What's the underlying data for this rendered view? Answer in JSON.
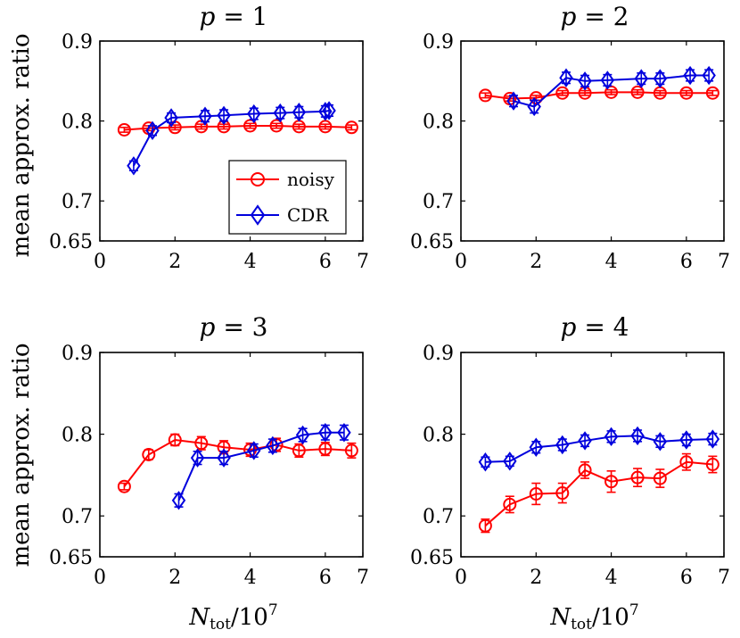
{
  "figure": {
    "ylabel": "mean approx. ratio",
    "xlabel_base": "N",
    "xlabel_sub": "tot",
    "xlabel_rest": "/10",
    "xlabel_exp": "7"
  },
  "legend": {
    "noisy": "noisy",
    "cdr": "CDR"
  },
  "colors": {
    "noisy": "#ff0000",
    "cdr": "#0000dd"
  },
  "chart_data": [
    {
      "type": "line",
      "title_var": "p",
      "title_eq": " = 1",
      "xlim": [
        0,
        7
      ],
      "ylim": [
        0.65,
        0.9
      ],
      "xticks": [
        "0",
        "2",
        "4",
        "6",
        "7"
      ],
      "xtick_values": [
        0,
        2,
        4,
        6,
        7
      ],
      "yticks": [
        "0.9",
        "0.8",
        "0.7",
        "0.65"
      ],
      "ytick_values": [
        0.9,
        0.8,
        0.7,
        0.65
      ],
      "series": [
        {
          "name": "noisy",
          "x": [
            0.65,
            1.3,
            2.0,
            2.7,
            3.3,
            4.0,
            4.7,
            5.3,
            6.0,
            6.7
          ],
          "y": [
            0.789,
            0.791,
            0.792,
            0.793,
            0.793,
            0.794,
            0.794,
            0.793,
            0.793,
            0.792
          ],
          "err": [
            0.003,
            0.003,
            0.003,
            0.003,
            0.003,
            0.003,
            0.003,
            0.003,
            0.003,
            0.003
          ]
        },
        {
          "name": "CDR",
          "x": [
            0.9,
            1.4,
            1.9,
            2.8,
            3.3,
            4.1,
            4.8,
            5.3,
            6.0,
            6.1
          ],
          "y": [
            0.744,
            0.788,
            0.804,
            0.806,
            0.807,
            0.809,
            0.81,
            0.811,
            0.812,
            0.813
          ],
          "err": [
            0.006,
            0.006,
            0.006,
            0.007,
            0.007,
            0.007,
            0.007,
            0.007,
            0.007,
            0.007
          ]
        }
      ],
      "legend_position": "lower-right"
    },
    {
      "type": "line",
      "title_var": "p",
      "title_eq": " = 2",
      "xlim": [
        0,
        7
      ],
      "ylim": [
        0.65,
        0.9
      ],
      "xticks": [
        "0",
        "2",
        "4",
        "6",
        "7"
      ],
      "xtick_values": [
        0,
        2,
        4,
        6,
        7
      ],
      "yticks": [
        "0.9",
        "0.8",
        "0.7",
        "0.65"
      ],
      "ytick_values": [
        0.9,
        0.8,
        0.7,
        0.65
      ],
      "series": [
        {
          "name": "noisy",
          "x": [
            0.65,
            1.3,
            2.0,
            2.7,
            3.3,
            4.0,
            4.7,
            5.3,
            6.0,
            6.7
          ],
          "y": [
            0.832,
            0.828,
            0.829,
            0.835,
            0.835,
            0.836,
            0.836,
            0.835,
            0.835,
            0.835
          ],
          "err": [
            0.003,
            0.003,
            0.003,
            0.003,
            0.003,
            0.003,
            0.003,
            0.003,
            0.003,
            0.003
          ]
        },
        {
          "name": "CDR",
          "x": [
            1.4,
            1.95,
            2.8,
            3.3,
            3.9,
            4.8,
            5.3,
            6.1,
            6.6
          ],
          "y": [
            0.825,
            0.818,
            0.854,
            0.85,
            0.851,
            0.853,
            0.853,
            0.857,
            0.857
          ],
          "err": [
            0.007,
            0.008,
            0.007,
            0.007,
            0.007,
            0.007,
            0.007,
            0.007,
            0.007
          ]
        }
      ]
    },
    {
      "type": "line",
      "title_var": "p",
      "title_eq": " = 3",
      "xlim": [
        0,
        7
      ],
      "ylim": [
        0.65,
        0.9
      ],
      "xticks": [
        "0",
        "2",
        "4",
        "6",
        "7"
      ],
      "xtick_values": [
        0,
        2,
        4,
        6,
        7
      ],
      "yticks": [
        "0.9",
        "0.8",
        "0.7",
        "0.65"
      ],
      "ytick_values": [
        0.9,
        0.8,
        0.7,
        0.65
      ],
      "series": [
        {
          "name": "noisy",
          "x": [
            0.65,
            1.3,
            2.0,
            2.7,
            3.3,
            4.0,
            4.7,
            5.3,
            6.0,
            6.7
          ],
          "y": [
            0.736,
            0.775,
            0.793,
            0.789,
            0.784,
            0.781,
            0.787,
            0.78,
            0.782,
            0.78
          ],
          "err": [
            0.004,
            0.006,
            0.007,
            0.008,
            0.008,
            0.008,
            0.008,
            0.008,
            0.008,
            0.009
          ]
        },
        {
          "name": "CDR",
          "x": [
            2.1,
            2.6,
            3.3,
            4.1,
            4.6,
            5.4,
            6.0,
            6.5
          ],
          "y": [
            0.719,
            0.771,
            0.771,
            0.78,
            0.786,
            0.799,
            0.802,
            0.802
          ],
          "err": [
            0.008,
            0.008,
            0.008,
            0.008,
            0.008,
            0.008,
            0.009,
            0.009
          ]
        }
      ]
    },
    {
      "type": "line",
      "title_var": "p",
      "title_eq": " = 4",
      "xlim": [
        0,
        7
      ],
      "ylim": [
        0.65,
        0.9
      ],
      "xticks": [
        "0",
        "2",
        "4",
        "6",
        "7"
      ],
      "xtick_values": [
        0,
        2,
        4,
        6,
        7
      ],
      "yticks": [
        "0.9",
        "0.8",
        "0.7",
        "0.65"
      ],
      "ytick_values": [
        0.9,
        0.8,
        0.7,
        0.65
      ],
      "series": [
        {
          "name": "noisy",
          "x": [
            0.65,
            1.3,
            2.0,
            2.7,
            3.3,
            4.0,
            4.7,
            5.3,
            6.0,
            6.7
          ],
          "y": [
            0.688,
            0.714,
            0.727,
            0.728,
            0.756,
            0.742,
            0.747,
            0.746,
            0.766,
            0.763
          ],
          "err": [
            0.008,
            0.01,
            0.013,
            0.012,
            0.01,
            0.013,
            0.011,
            0.011,
            0.01,
            0.01
          ]
        },
        {
          "name": "CDR",
          "x": [
            0.65,
            1.3,
            2.0,
            2.7,
            3.3,
            4.0,
            4.7,
            5.3,
            6.0,
            6.7
          ],
          "y": [
            0.766,
            0.767,
            0.784,
            0.787,
            0.792,
            0.797,
            0.798,
            0.791,
            0.793,
            0.794
          ],
          "err": [
            0.006,
            0.006,
            0.007,
            0.007,
            0.007,
            0.007,
            0.007,
            0.007,
            0.007,
            0.007
          ]
        }
      ]
    }
  ]
}
